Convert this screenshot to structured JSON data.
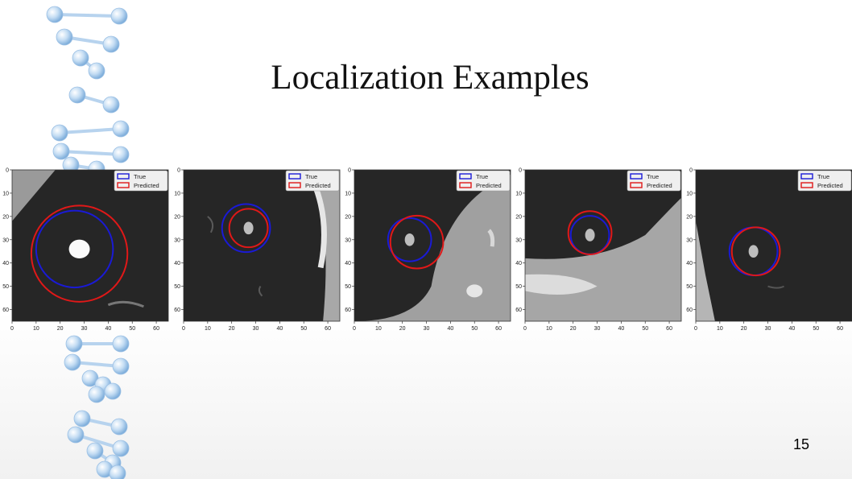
{
  "slide": {
    "title": "Localization Examples",
    "page_number": "15"
  },
  "plot": {
    "x_ticks": [
      "0",
      "10",
      "20",
      "30",
      "40",
      "50",
      "60"
    ],
    "y_ticks": [
      "0",
      "10",
      "20",
      "30",
      "40",
      "50",
      "60"
    ],
    "legend_true": "True",
    "legend_predicted": "Predicted",
    "colors": {
      "true": "#1a1ad6",
      "predicted": "#e01818"
    }
  },
  "examples": [
    {
      "nodule_center": [
        28,
        34
      ],
      "true_circle": {
        "cx": 26,
        "cy": 34,
        "r": 16
      },
      "predicted_circle": {
        "cx": 28,
        "cy": 36,
        "r": 20
      }
    },
    {
      "nodule_center": [
        27,
        25
      ],
      "true_circle": {
        "cx": 26,
        "cy": 25,
        "r": 10
      },
      "predicted_circle": {
        "cx": 27,
        "cy": 25,
        "r": 8
      }
    },
    {
      "nodule_center": [
        23,
        30
      ],
      "true_circle": {
        "cx": 23,
        "cy": 30,
        "r": 9
      },
      "predicted_circle": {
        "cx": 26,
        "cy": 31,
        "r": 11
      }
    },
    {
      "nodule_center": [
        27,
        28
      ],
      "true_circle": {
        "cx": 27,
        "cy": 28,
        "r": 8
      },
      "predicted_circle": {
        "cx": 27,
        "cy": 27,
        "r": 9
      }
    },
    {
      "nodule_center": [
        24,
        35
      ],
      "true_circle": {
        "cx": 24,
        "cy": 35,
        "r": 10
      },
      "predicted_circle": {
        "cx": 25,
        "cy": 35,
        "r": 10
      }
    }
  ]
}
